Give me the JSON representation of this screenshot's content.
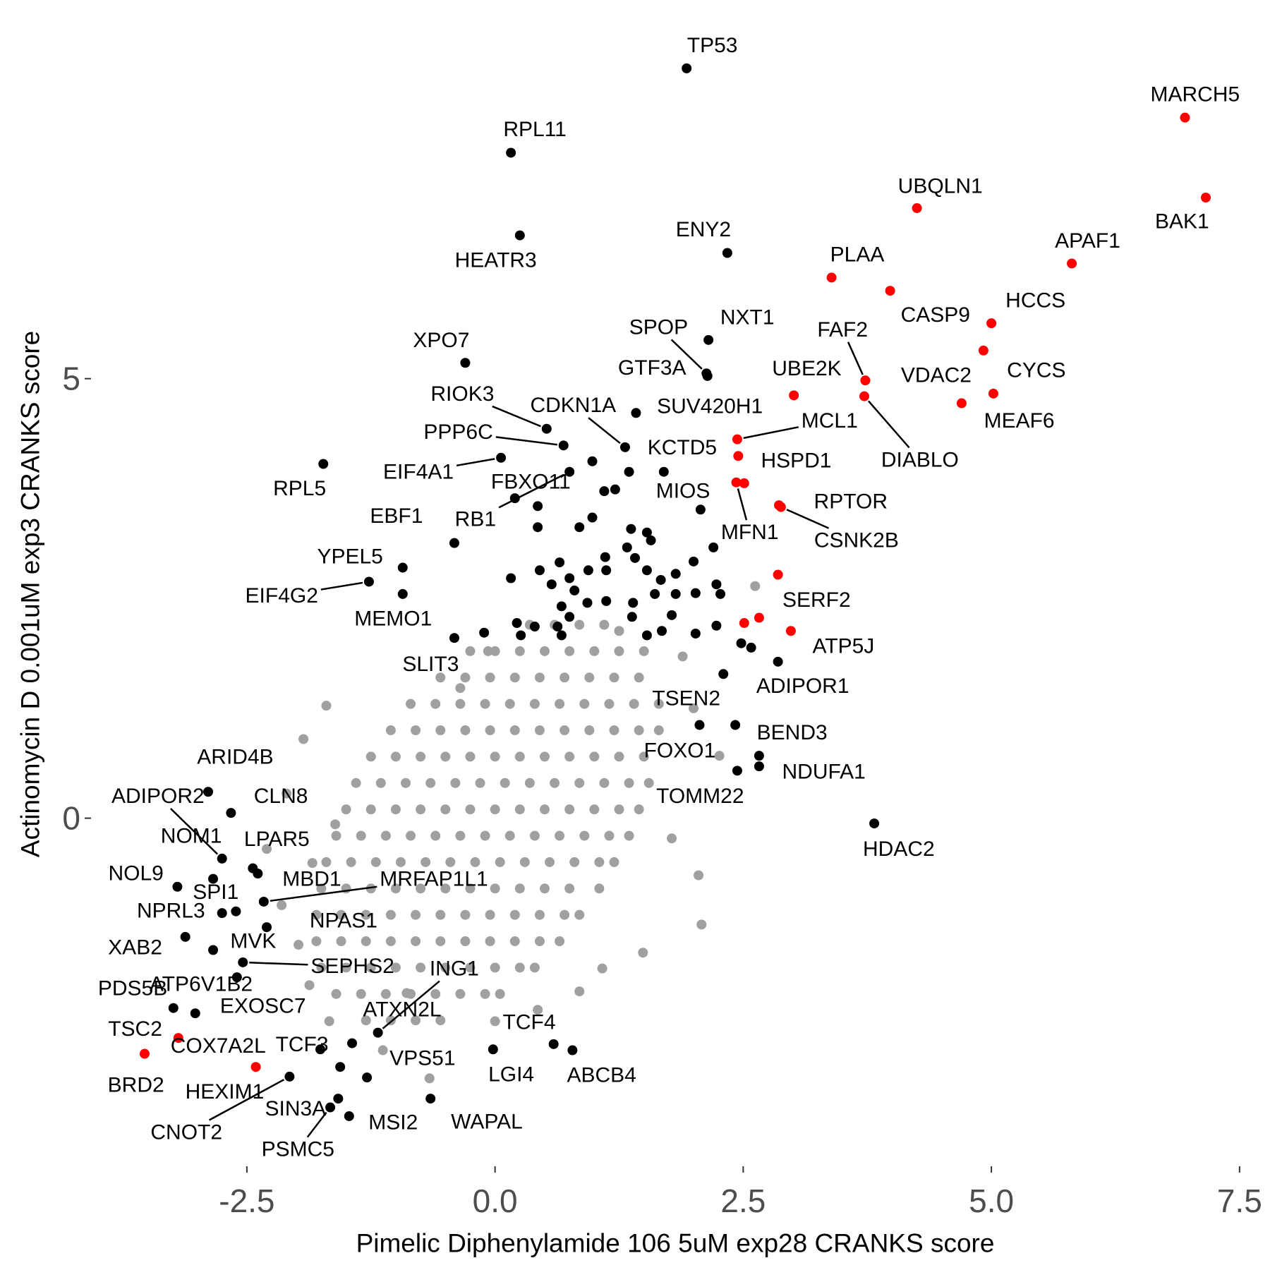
{
  "chart_data": {
    "type": "scatter",
    "xlabel": "Pimelic Diphenylamide 106 5uM exp28 CRANKS score",
    "ylabel": "Actinomycin D 0.001uM exp3 CRANKS score",
    "xlim": [
      -4.07,
      7.7
    ],
    "ylim": [
      -3.96,
      8.85
    ],
    "xticks": [
      -2.5,
      {
        "value": 0,
        "label": "0.0"
      },
      2.5,
      {
        "value": 5,
        "label": "5.0"
      },
      7.5
    ],
    "yticks": [
      0,
      5
    ],
    "series": [
      {
        "color": "#a0a0a0",
        "x": [
          0.35,
          0.6,
          0.85,
          1.1,
          -0.25,
          0,
          0.25,
          0.5,
          0.75,
          1,
          1.25,
          1.5,
          -0.55,
          -0.3,
          -0.05,
          0.2,
          0.45,
          0.7,
          0.95,
          1.2,
          1.45,
          -0.85,
          -0.6,
          -0.35,
          -0.1,
          0.15,
          0.4,
          0.65,
          0.9,
          1.15,
          1.4,
          1.65,
          -1.05,
          -0.8,
          -0.55,
          -0.3,
          -0.05,
          0.2,
          0.45,
          0.7,
          0.95,
          1.2,
          1.45,
          1.65,
          -1.25,
          -1,
          -0.75,
          -0.5,
          -0.25,
          0,
          0.25,
          0.5,
          0.75,
          1,
          1.25,
          1.5,
          -1.4,
          -1.15,
          -0.9,
          -0.65,
          -0.4,
          -0.15,
          0.1,
          0.35,
          0.6,
          0.85,
          1.1,
          1.35,
          1.55,
          -1.5,
          -1.25,
          -1,
          -0.75,
          -0.5,
          -0.25,
          0,
          0.25,
          0.5,
          0.75,
          1,
          1.25,
          1.45,
          -1.6,
          -1.35,
          -1.1,
          -0.85,
          -0.6,
          -0.35,
          -0.1,
          0.15,
          0.4,
          0.65,
          0.9,
          1.15,
          1.35,
          -1.7,
          -1.45,
          -1.2,
          -0.95,
          -0.7,
          -0.45,
          -0.2,
          0.05,
          0.3,
          0.55,
          0.8,
          1.05,
          1.2,
          -1.75,
          -1.5,
          -1.25,
          -1,
          -0.75,
          -0.5,
          -0.25,
          0,
          0.25,
          0.5,
          0.75,
          1.05,
          -1.8,
          -1.55,
          -1.3,
          -1.05,
          -0.8,
          -0.55,
          -0.3,
          -0.05,
          0.2,
          0.45,
          0.7,
          0.85,
          -1.8,
          -1.55,
          -1.3,
          -1.05,
          -0.8,
          -0.55,
          -0.3,
          -0.05,
          0.2,
          0.45,
          0.65,
          -1.75,
          -1.5,
          -1.25,
          -1,
          -0.75,
          -0.5,
          -0.25,
          0,
          0.25,
          0.4,
          -1.6,
          -1.35,
          -1.1,
          -0.85,
          -0.6,
          -0.35,
          -0.1,
          0.05,
          -1.3,
          -1.05,
          -0.8,
          -0.55,
          -1.7,
          -1.93,
          -2.1,
          -1.61,
          -1.84,
          -2.15,
          -1.98,
          -1.67,
          -1.87,
          -0.66,
          0,
          0.85,
          2.08,
          2.05,
          2.26,
          2.0,
          2.62,
          1.89,
          1.25,
          -0.07,
          -0.35,
          -1.13,
          0.43,
          1.49,
          1.78,
          1.08,
          -0.89,
          -2.3
        ],
        "y": [
          2.2,
          2.2,
          2.2,
          2.2,
          1.9,
          1.9,
          1.9,
          1.9,
          1.9,
          1.9,
          1.9,
          1.9,
          1.6,
          1.6,
          1.6,
          1.6,
          1.6,
          1.6,
          1.6,
          1.6,
          1.6,
          1.3,
          1.3,
          1.3,
          1.3,
          1.3,
          1.3,
          1.3,
          1.3,
          1.3,
          1.3,
          1.3,
          1,
          1,
          1,
          1,
          1,
          1,
          1,
          1,
          1,
          1,
          1,
          1,
          0.7,
          0.7,
          0.7,
          0.7,
          0.7,
          0.7,
          0.7,
          0.7,
          0.7,
          0.7,
          0.7,
          0.7,
          0.4,
          0.4,
          0.4,
          0.4,
          0.4,
          0.4,
          0.4,
          0.4,
          0.4,
          0.4,
          0.4,
          0.4,
          0.4,
          0.1,
          0.1,
          0.1,
          0.1,
          0.1,
          0.1,
          0.1,
          0.1,
          0.1,
          0.1,
          0.1,
          0.1,
          0.1,
          -0.2,
          -0.2,
          -0.2,
          -0.2,
          -0.2,
          -0.2,
          -0.2,
          -0.2,
          -0.2,
          -0.2,
          -0.2,
          -0.2,
          -0.2,
          -0.5,
          -0.5,
          -0.5,
          -0.5,
          -0.5,
          -0.5,
          -0.5,
          -0.5,
          -0.5,
          -0.5,
          -0.5,
          -0.5,
          -0.5,
          -0.8,
          -0.8,
          -0.8,
          -0.8,
          -0.8,
          -0.8,
          -0.8,
          -0.8,
          -0.8,
          -0.8,
          -0.8,
          -0.8,
          -1.1,
          -1.1,
          -1.1,
          -1.1,
          -1.1,
          -1.1,
          -1.1,
          -1.1,
          -1.1,
          -1.1,
          -1.1,
          -1.1,
          -1.4,
          -1.4,
          -1.4,
          -1.4,
          -1.4,
          -1.4,
          -1.4,
          -1.4,
          -1.4,
          -1.4,
          -1.4,
          -1.7,
          -1.7,
          -1.7,
          -1.7,
          -1.7,
          -1.7,
          -1.7,
          -1.7,
          -1.7,
          -1.7,
          -2,
          -2,
          -2,
          -2,
          -2,
          -2,
          -2,
          -2,
          -2.3,
          -2.3,
          -2.3,
          -2.3,
          1.28,
          0.9,
          0.28,
          -0.07,
          -0.51,
          -0.99,
          -1.44,
          -2.31,
          -1.9,
          -2.96,
          -2.31,
          -1.97,
          -1.21,
          -0.65,
          0.71,
          1.25,
          2.64,
          1.84,
          2.13,
          1.9,
          1.48,
          -2.64,
          -2.18,
          -1.53,
          -0.23,
          -1.71,
          -1.99,
          -0.35
        ]
      },
      {
        "color": "#000000",
        "x": [
          0.2,
          1.35,
          1.1,
          1.21,
          0.43,
          0.43,
          0.85,
          0.98,
          1.37,
          1.53,
          1.57,
          1.11,
          1.33,
          0.45,
          0.65,
          0.16,
          0.57,
          0.75,
          0.8,
          0.94,
          1.12,
          1.41,
          1.53,
          1.67,
          1.82,
          2.0,
          2.2,
          2.23,
          2.02,
          2.27,
          0.93,
          1.12,
          1.39,
          1.61,
          1.82,
          0.67,
          0.75,
          1.38,
          1.78,
          1.68,
          0.22,
          0.4,
          0.26,
          0.63,
          0.67,
          1.53,
          2.02,
          2.23,
          -0.11,
          2.48,
          2.58,
          2.66
        ],
        "y": [
          3.64,
          3.94,
          3.72,
          3.74,
          3.55,
          3.31,
          3.31,
          3.42,
          3.29,
          3.25,
          3.16,
          2.97,
          3.08,
          2.82,
          2.91,
          2.73,
          2.66,
          2.73,
          2.59,
          2.82,
          2.82,
          2.96,
          2.82,
          2.71,
          2.78,
          2.92,
          3.08,
          2.66,
          2.56,
          2.55,
          2.45,
          2.47,
          2.45,
          2.55,
          2.55,
          2.41,
          2.29,
          2.29,
          2.31,
          2.13,
          2.22,
          2.18,
          2.08,
          2.18,
          2.08,
          2.08,
          2.1,
          2.19,
          2.11,
          1.99,
          1.94,
          0.59
        ]
      },
      {
        "color": "#000000",
        "labels": [
          "TP53",
          "RPL11",
          "HEATR3",
          "ENY2",
          "NXT1",
          "SPOP",
          "GTF3A",
          "XPO7",
          "RIOK3",
          "CDKN1A",
          "SUV420H1",
          "PPP6C",
          "KCTD5",
          "EIF4A1",
          "FBXO11",
          "RB1",
          "MIOS",
          "RPL5",
          "EBF1",
          "YPEL5",
          "EIF4G2",
          "MEMO1",
          "SLIT3",
          "TSEN2",
          "ADIPOR1",
          "BEND3",
          "FOXO1",
          "NDUFA1",
          "TOMM22",
          "HDAC2",
          "ARID4B",
          "CLN8",
          "ADIPOR2",
          "NOM1",
          "LPAR5",
          "NOL9",
          "SPI1",
          "MBD1",
          "MRFAP1L1",
          "NPRL3",
          "NPAS1",
          "XAB2",
          "MVK",
          "SEPHS2",
          "PDS5B",
          "ATP6V1B2",
          "EXOSC7",
          "ING1",
          "ATXN2L",
          "TCF3",
          "VPS51",
          "LGI4",
          "TCF4",
          "ABCB4",
          "HEXIM1",
          "CNOT2",
          "SIN3A",
          "PSMC5",
          "MSI2",
          "WAPAL"
        ],
        "x": [
          1.93,
          0.16,
          0.25,
          2.34,
          2.15,
          2.13,
          2.14,
          -0.3,
          0.52,
          1.31,
          1.42,
          0.69,
          1.7,
          0.06,
          0.98,
          0.75,
          2.07,
          -1.73,
          -0.41,
          -0.93,
          -1.27,
          -0.93,
          -0.41,
          2.3,
          2.85,
          2.42,
          2.06,
          2.66,
          2.44,
          3.82,
          -2.89,
          -2.66,
          -2.75,
          -2.84,
          -2.44,
          -3.2,
          -2.61,
          -2.39,
          -2.33,
          -2.75,
          -2.3,
          -3.12,
          -2.84,
          -2.54,
          -3.24,
          -2.6,
          -3.02,
          -1.18,
          -1.44,
          -1.76,
          -1.29,
          -0.02,
          0.59,
          0.78,
          -1.56,
          -2.07,
          -1.58,
          -1.66,
          -1.47,
          -0.65
        ],
        "y": [
          8.53,
          7.57,
          6.63,
          6.43,
          5.44,
          5.06,
          5.03,
          5.18,
          4.43,
          4.22,
          4.61,
          4.24,
          3.94,
          4.1,
          4.06,
          3.94,
          3.51,
          4.03,
          3.13,
          2.85,
          2.69,
          2.55,
          2.05,
          1.64,
          1.78,
          1.06,
          1.06,
          0.71,
          0.54,
          -0.06,
          0.3,
          0.06,
          -0.46,
          -0.69,
          -0.57,
          -0.78,
          -1.06,
          -0.63,
          -0.95,
          -1.08,
          -1.24,
          -1.35,
          -1.5,
          -1.64,
          -2.16,
          -1.81,
          -2.22,
          -2.44,
          -2.56,
          -2.63,
          -2.95,
          -2.63,
          -2.57,
          -2.64,
          -2.83,
          -2.94,
          -3.19,
          -3.29,
          -3.39,
          -3.19
        ]
      },
      {
        "color": "#ff0000",
        "x": [
          2.51,
          2.51,
          2.66
        ],
        "y": [
          3.81,
          2.22,
          2.28
        ]
      },
      {
        "color": "#ff0000",
        "labels": [
          "MARCH5",
          "BAK1",
          "UBQLN1",
          "APAF1",
          "PLAA",
          "CASP9",
          "HCCS",
          "VDAC2",
          "CYCS",
          "MEAF6",
          "FAF2",
          "UBE2K",
          "DIABLO",
          "MCL1",
          "HSPD1",
          "MFN1",
          "RPTOR",
          "CSNK2B",
          "SERF2",
          "ATP5J",
          "TSC2",
          "COX7A2L",
          "BRD2"
        ],
        "x": [
          6.95,
          7.16,
          4.25,
          5.81,
          3.39,
          3.98,
          5.0,
          4.92,
          5.02,
          4.7,
          3.73,
          3.01,
          3.72,
          2.44,
          2.45,
          2.43,
          2.86,
          2.88,
          2.85,
          2.98,
          -3.19,
          -2.41,
          -3.53
        ],
        "y": [
          7.97,
          7.06,
          6.94,
          6.31,
          6.15,
          6.0,
          5.63,
          5.32,
          4.83,
          4.72,
          4.98,
          4.81,
          4.8,
          4.31,
          4.12,
          3.82,
          3.56,
          3.54,
          2.77,
          2.13,
          -2.5,
          -2.83,
          -2.68
        ]
      }
    ]
  }
}
